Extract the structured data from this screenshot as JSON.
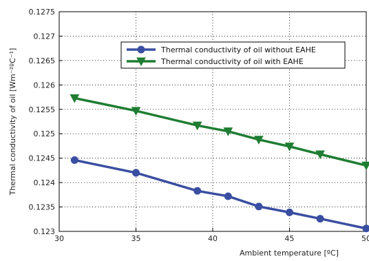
{
  "chart_data": {
    "type": "line",
    "title": "",
    "xlabel": "Ambient temperature [ºC]",
    "ylabel": "Thermal conductivity of oil [Wm⁻²ºC⁻¹]",
    "xlim": [
      30,
      50
    ],
    "ylim": [
      0.123,
      0.1275
    ],
    "xticks": [
      "30",
      "35",
      "40",
      "45",
      "50"
    ],
    "yticks": [
      "0.123",
      "0.1235",
      "0.124",
      "0.1245",
      "0.125",
      "0.1255",
      "0.126",
      "0.1265",
      "0.127",
      "0.1275"
    ],
    "grid": true,
    "legend_position": "top-right",
    "x": [
      31,
      35,
      39,
      41,
      43,
      45,
      47,
      50
    ],
    "series": [
      {
        "name": "Thermal conductivity of oil without EAHE",
        "color": "#3a4ea1",
        "marker": "circle",
        "values": [
          0.12446,
          0.1242,
          0.12383,
          0.12372,
          0.12351,
          0.12339,
          0.12326,
          0.12306
        ]
      },
      {
        "name": "Thermal conductivity of oil with EAHE",
        "color": "#1e7d32",
        "marker": "triangle-down",
        "values": [
          0.12573,
          0.12547,
          0.12517,
          0.12505,
          0.12488,
          0.12474,
          0.12458,
          0.12435
        ]
      }
    ]
  }
}
